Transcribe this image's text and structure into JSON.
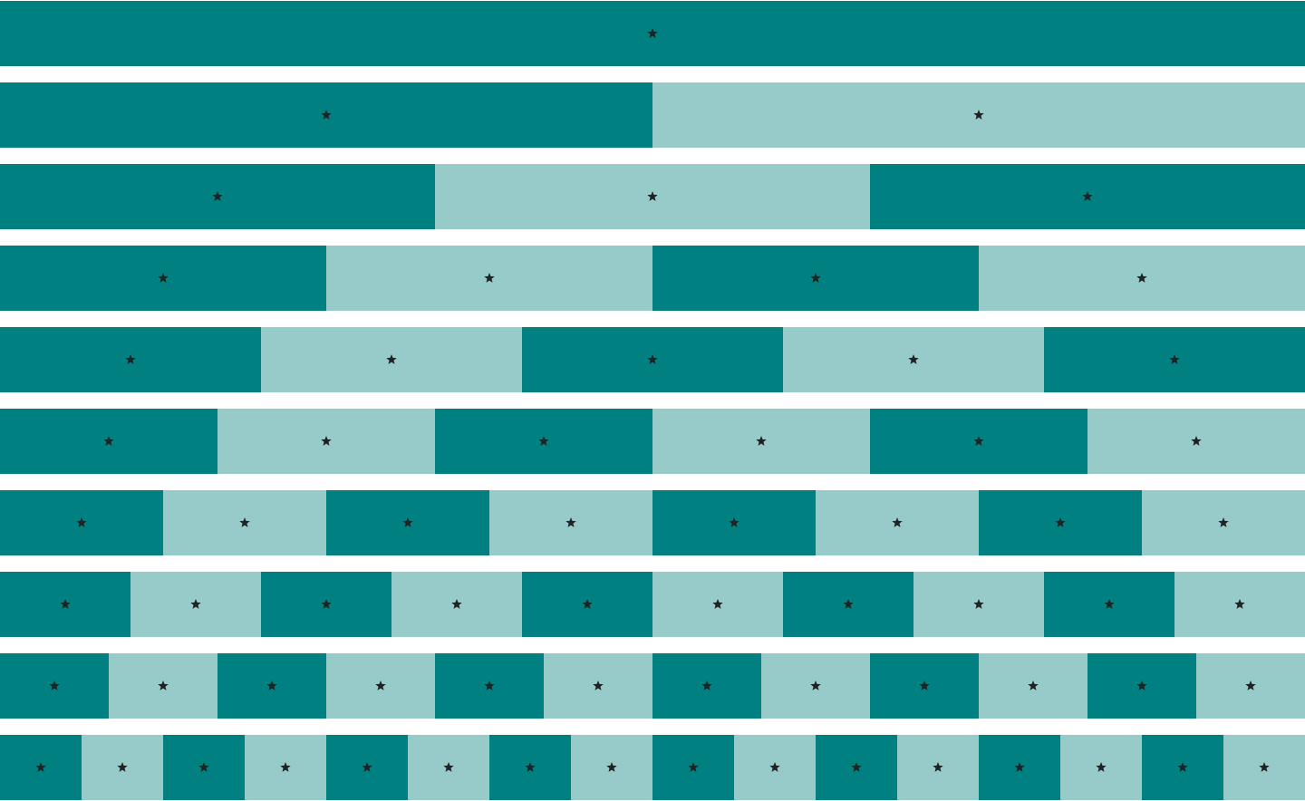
{
  "colors": {
    "dark_cell": "#008080",
    "light_cell": "#97cbca",
    "marker": "#222222",
    "background": "#ffffff"
  },
  "marker_icon": "star-icon",
  "rows": [
    {
      "segments": 1
    },
    {
      "segments": 2
    },
    {
      "segments": 3
    },
    {
      "segments": 4
    },
    {
      "segments": 5
    },
    {
      "segments": 6
    },
    {
      "segments": 8
    },
    {
      "segments": 10
    },
    {
      "segments": 12
    },
    {
      "segments": 16
    }
  ]
}
